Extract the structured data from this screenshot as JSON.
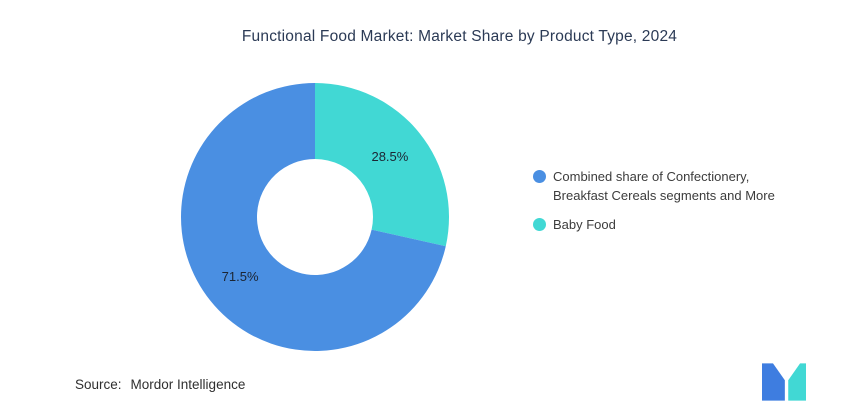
{
  "title": "Functional Food Market: Market Share by Product Type, 2024",
  "chart_data": {
    "type": "pie",
    "subtype": "donut",
    "title": "Functional Food Market: Market Share by Product Type, 2024",
    "direction": "clockwise",
    "start_angle_deg": 0,
    "inner_radius_ratio": 0.43,
    "legend_position": "right",
    "slices": [
      {
        "name": "baby-food",
        "label": "Baby Food",
        "value": 28.5,
        "display_label": "28.5%",
        "color": "#41D8D4"
      },
      {
        "name": "combined-confectionery-cereals-more",
        "label": "Combined share of Confectionery, Breakfast Cereals segments and More",
        "value": 71.5,
        "display_label": "71.5%",
        "color": "#4A8FE2"
      }
    ]
  },
  "legend": {
    "items": [
      {
        "label": "Combined share of Confectionery, Breakfast Cereals segments and More",
        "color": "#4A8FE2"
      },
      {
        "label": "Baby Food",
        "color": "#41D8D4"
      }
    ]
  },
  "source": {
    "label": "Source:",
    "value": "Mordor Intelligence"
  },
  "branding": {
    "logo_name": "mordor-intelligence-logo",
    "logo_blue": "#3E7DE0",
    "logo_teal": "#41D8D4"
  }
}
